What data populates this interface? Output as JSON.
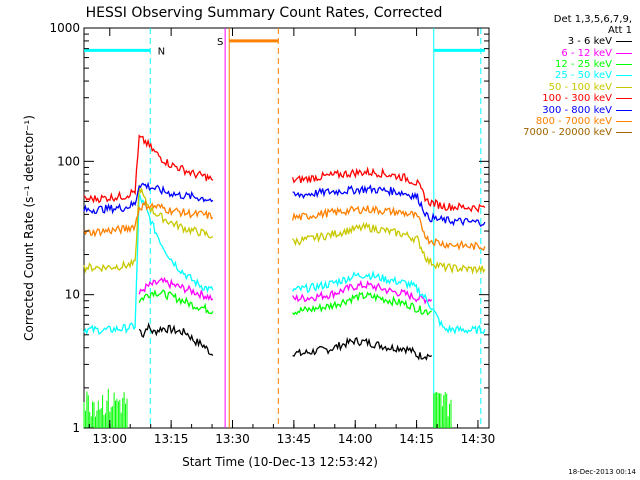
{
  "chart_data": {
    "type": "line",
    "title": "HESSI Observing Summary Count Rates, Corrected",
    "xlabel": "Start Time (10-Dec-13 12:53:42)",
    "ylabel": "Corrected Count Rate (s⁻¹ detector⁻¹)",
    "yscale": "log",
    "ylim": [
      1,
      1000
    ],
    "xlim_minutes": [
      0,
      99
    ],
    "x_ticks": [
      {
        "m": 6.3,
        "label": "13:00"
      },
      {
        "m": 21.3,
        "label": "13:15"
      },
      {
        "m": 36.3,
        "label": "13:30"
      },
      {
        "m": 51.3,
        "label": "13:45"
      },
      {
        "m": 66.3,
        "label": "14:00"
      },
      {
        "m": 81.3,
        "label": "14:15"
      },
      {
        "m": 96.3,
        "label": "14:30"
      }
    ],
    "y_ticks": [
      {
        "v": 1,
        "label": "1"
      },
      {
        "v": 10,
        "label": "10"
      },
      {
        "v": 100,
        "label": "100"
      },
      {
        "v": 1000,
        "label": "1000"
      }
    ],
    "grid": false,
    "legend_position": "right",
    "legend_header": [
      "Det 1,3,5,6,7,9,",
      "Att 1"
    ],
    "annotations": {
      "N": "N",
      "S": "S"
    },
    "series": [
      {
        "name": "3 - 6 keV",
        "color": "#000000",
        "x": [
          13.5,
          14.5,
          15.5,
          17,
          19,
          21,
          23,
          25,
          27,
          29,
          30.5,
          31.5,
          51,
          53,
          55,
          57,
          60,
          63,
          66,
          69,
          72,
          75,
          78,
          80,
          81.5,
          84,
          85
        ],
        "y": [
          5.5,
          5,
          5.8,
          5.2,
          5.6,
          5.5,
          5.3,
          5.2,
          4.5,
          4.2,
          3.8,
          3.5,
          3.7,
          3.6,
          3.7,
          3.8,
          3.9,
          4.2,
          4.5,
          4.4,
          4.2,
          4,
          4,
          3.8,
          3.5,
          3.5,
          3.5
        ]
      },
      {
        "name": "6 - 12 keV",
        "color": "#ff00ff",
        "x": [
          13.5,
          14.5,
          15.5,
          17,
          19,
          21,
          23,
          25,
          27,
          29,
          30.5,
          31.5,
          51,
          53,
          55,
          57,
          60,
          63,
          66,
          69,
          72,
          75,
          78,
          80,
          81.5,
          84,
          85
        ],
        "y": [
          10,
          11,
          11.5,
          12,
          12.5,
          12,
          11.5,
          11,
          10.5,
          10,
          9.6,
          9.3,
          9.3,
          9.4,
          9.5,
          9.7,
          10,
          10.7,
          11.5,
          11.8,
          11.3,
          10.6,
          10.2,
          9.8,
          9.4,
          9.2,
          9.2
        ]
      },
      {
        "name": "12 - 25 keV",
        "color": "#00ff00",
        "x": [
          13.5,
          14.5,
          15.5,
          17,
          19,
          21,
          23,
          25,
          27,
          29,
          30.5,
          31.5,
          51,
          53,
          55,
          57,
          60,
          63,
          66,
          69,
          72,
          75,
          78,
          80,
          81.5,
          84,
          85
        ],
        "y": [
          9,
          9.5,
          10,
          10.5,
          10.2,
          9.8,
          9.3,
          8.8,
          8.3,
          8,
          7.7,
          7.5,
          7.5,
          7.6,
          7.7,
          7.9,
          8.2,
          8.8,
          9.5,
          9.8,
          9.5,
          9,
          8.6,
          8.3,
          7.8,
          7.5,
          7.5
        ]
      },
      {
        "name": "25 - 50 keV",
        "color": "#00ffff",
        "x": [
          0,
          5,
          10,
          12.5,
          13.5,
          15,
          17,
          19,
          21,
          23,
          25,
          27,
          29,
          30.5,
          31.5,
          51,
          53,
          55,
          57,
          60,
          63,
          66,
          69,
          72,
          75,
          78,
          80,
          81.5,
          84,
          88,
          95,
          98
        ],
        "y": [
          5.5,
          5.4,
          5.6,
          5.8,
          55,
          45,
          32,
          24,
          19,
          16,
          14,
          12.5,
          11.5,
          11,
          10.8,
          10.8,
          11,
          11.2,
          11.5,
          12,
          12.8,
          13.8,
          14.2,
          13.5,
          12.8,
          12.3,
          11.8,
          11,
          9,
          5.5,
          5.4,
          5.5
        ]
      },
      {
        "name": "50 - 100 keV",
        "color": "#c8c800",
        "x": [
          0,
          5,
          10,
          12.5,
          13.5,
          15,
          17,
          19,
          21,
          23,
          25,
          27,
          29,
          30.5,
          31.5,
          51,
          53,
          55,
          57,
          60,
          63,
          66,
          69,
          72,
          75,
          78,
          80,
          81.5,
          84,
          88,
          95,
          98
        ],
        "y": [
          16,
          16,
          16.5,
          17,
          65,
          50,
          42,
          38,
          35,
          33,
          31,
          30,
          29,
          28,
          27,
          25,
          25.5,
          26,
          27,
          28,
          29.5,
          31,
          32,
          31,
          29.5,
          28.5,
          27,
          26,
          18,
          16,
          15.5,
          15.5
        ]
      },
      {
        "name": "100 - 300 keV",
        "color": "#ff0000",
        "x": [
          0,
          5,
          10,
          12.5,
          13.5,
          15,
          17,
          19,
          21,
          23,
          25,
          27,
          29,
          30.5,
          31.5,
          51,
          53,
          55,
          57,
          60,
          63,
          66,
          69,
          72,
          75,
          78,
          80,
          81.5,
          84,
          88,
          95,
          98
        ],
        "y": [
          52,
          53,
          55,
          60,
          150,
          140,
          120,
          105,
          95,
          90,
          85,
          80,
          78,
          75,
          72,
          72,
          73,
          74,
          76,
          78,
          80,
          82,
          83,
          82,
          79,
          76,
          72,
          68,
          50,
          46,
          45,
          45
        ]
      },
      {
        "name": "300 - 800 keV",
        "color": "#0000ff",
        "x": [
          0,
          5,
          10,
          12.5,
          13.5,
          15,
          17,
          19,
          21,
          23,
          25,
          27,
          29,
          30.5,
          31.5,
          51,
          53,
          55,
          57,
          60,
          63,
          66,
          69,
          72,
          75,
          78,
          80,
          81.5,
          84,
          88,
          95,
          98
        ],
        "y": [
          43,
          44,
          45,
          48,
          68,
          66,
          63,
          60,
          58,
          56,
          55,
          54,
          53,
          52,
          51,
          55,
          56,
          57,
          58,
          59,
          60,
          61,
          62,
          61,
          60,
          58,
          56,
          54,
          38,
          36,
          35,
          35
        ]
      },
      {
        "name": "800 - 7000 keV",
        "color": "#ff8000",
        "x": [
          0,
          5,
          10,
          12.5,
          13.5,
          15,
          17,
          19,
          21,
          23,
          25,
          27,
          29,
          30.5,
          31.5,
          51,
          53,
          55,
          57,
          60,
          63,
          66,
          69,
          72,
          75,
          78,
          80,
          81.5,
          84,
          88,
          95,
          98
        ],
        "y": [
          29,
          30,
          31,
          33,
          45,
          47,
          46,
          45,
          43,
          42,
          41,
          40,
          40,
          39,
          38,
          38,
          38,
          39,
          40,
          41,
          42,
          43,
          44,
          43,
          42,
          41,
          40,
          38,
          26,
          24,
          23,
          23
        ]
      },
      {
        "name": "7000 - 20000 keV",
        "color": "#a06400",
        "x": [],
        "y": []
      }
    ],
    "attenuator_segments": [
      {
        "color": "#00ffff",
        "y": 680,
        "x": [
          0,
          16.2
        ]
      },
      {
        "color": "#00ffff",
        "y": 680,
        "x": [
          85.5,
          98
        ]
      },
      {
        "color": "#ff8000",
        "y": 800,
        "x": [
          35.5,
          47.5
        ]
      }
    ],
    "vertical_markers": [
      {
        "color": "#00ffff",
        "style": "dashed",
        "x": 16.2
      },
      {
        "color": "#00ffff",
        "style": "solid",
        "x": 85.5
      },
      {
        "color": "#00ffff",
        "style": "dashed",
        "x": 97
      },
      {
        "color": "#ff8000",
        "style": "solid",
        "x": 35.5
      },
      {
        "color": "#ff8000",
        "style": "dashed",
        "x": 47.5
      },
      {
        "color": "#ff00ff",
        "style": "solid",
        "x": 34.5
      }
    ]
  },
  "timestamp": "18-Dec-2013 00:14"
}
